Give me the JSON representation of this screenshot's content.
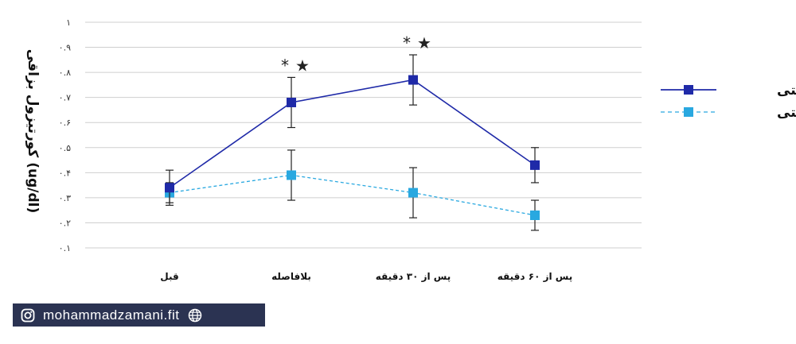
{
  "chart_data": {
    "type": "line",
    "ylabel": "کورتیزول بزاقی (ug/dl)",
    "ylim": [
      0.1,
      1.0
    ],
    "yticks": [
      0.1,
      0.2,
      0.3,
      0.4,
      0.5,
      0.6,
      0.7,
      0.8,
      0.9,
      1.0
    ],
    "ytick_labels": [
      "۰.۱",
      "۰.۲",
      "۰.۳",
      "۰.۴",
      "۰.۵",
      "۰.۶",
      "۰.۷",
      "۰.۸",
      "۰.۹",
      "۱"
    ],
    "categories": [
      "قبل",
      "بلافاصله",
      "پس از ۳۰ دقیقه",
      "پس از ۶۰ دقیقه"
    ],
    "grid": true,
    "legend_position": "right",
    "series": [
      {
        "name": "سه ستی",
        "color": "#1f2aa8",
        "line_style": "solid",
        "values": [
          0.34,
          0.68,
          0.77,
          0.43
        ],
        "error": [
          0.07,
          0.1,
          0.1,
          0.07
        ]
      },
      {
        "name": "تک ستی",
        "color": "#29a8e0",
        "line_style": "dashed",
        "values": [
          0.32,
          0.39,
          0.32,
          0.23
        ],
        "error": [
          0.04,
          0.1,
          0.1,
          0.06
        ]
      }
    ],
    "significance": [
      {
        "category_index": 1,
        "symbols": [
          "*",
          "★"
        ]
      },
      {
        "category_index": 2,
        "symbols": [
          "*",
          "★"
        ]
      }
    ]
  },
  "watermark": {
    "text": "mohammadzamani.fit",
    "left_icon": "instagram-icon",
    "right_icon": "globe-icon"
  }
}
